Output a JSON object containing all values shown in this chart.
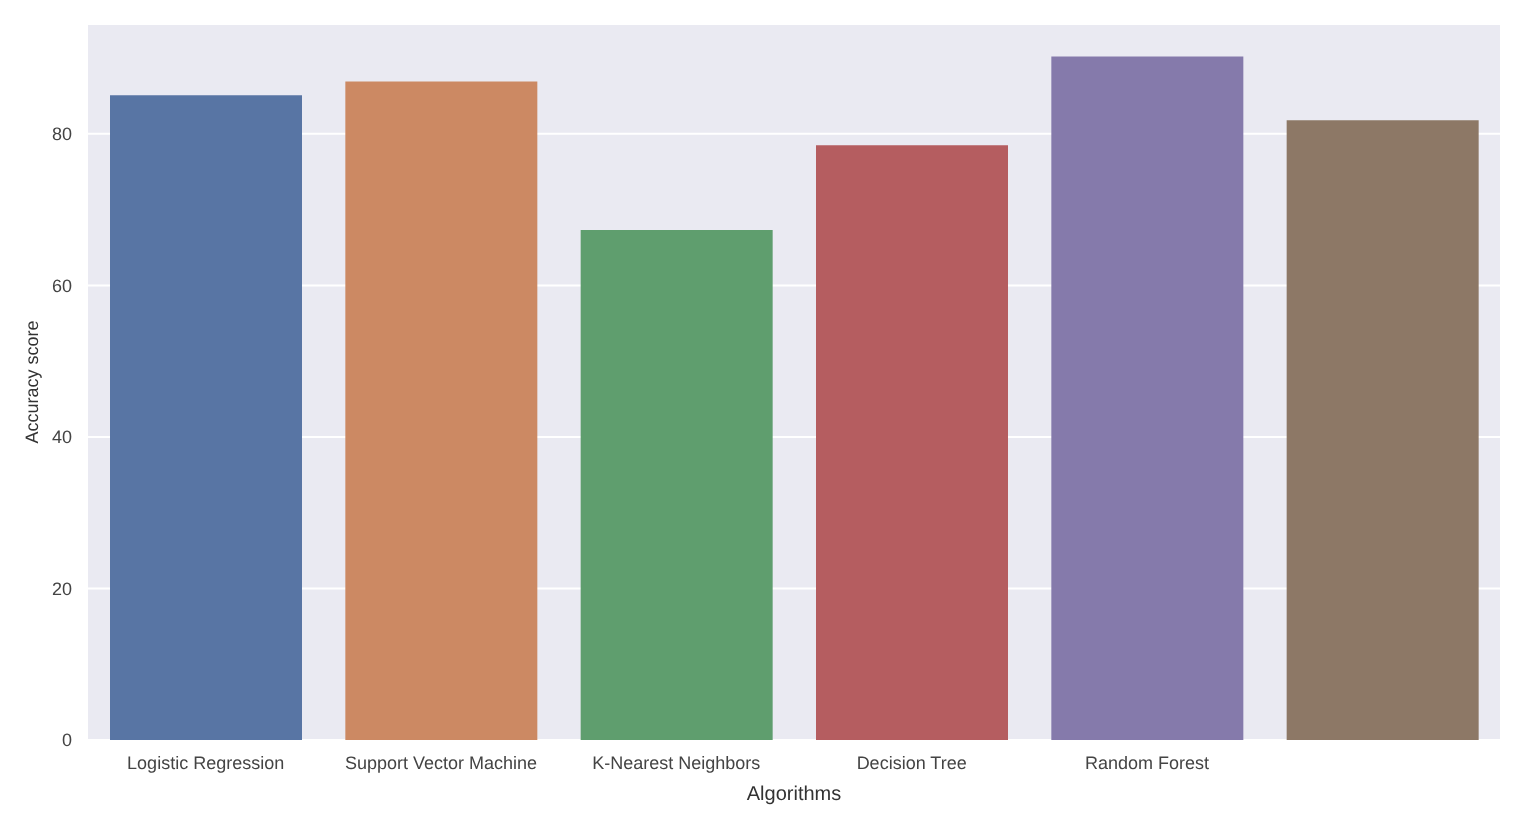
{
  "chart_data": {
    "type": "bar",
    "xlabel": "Algorithms",
    "ylabel": "Accuracy score",
    "categories": [
      "Logistic Regression",
      "Support Vector Machine",
      "K-Nearest Neighbors",
      "Decision Tree",
      "Random Forest",
      null
    ],
    "values": [
      85.1,
      86.9,
      67.3,
      78.5,
      90.2,
      81.8
    ],
    "colors": [
      "#5875a4",
      "#cc8963",
      "#5f9e6e",
      "#b55d60",
      "#857aab",
      "#8d7866"
    ],
    "ylim": [
      0,
      94.5
    ],
    "yticks": [
      0,
      20,
      40,
      60,
      80
    ],
    "grid": "y"
  }
}
